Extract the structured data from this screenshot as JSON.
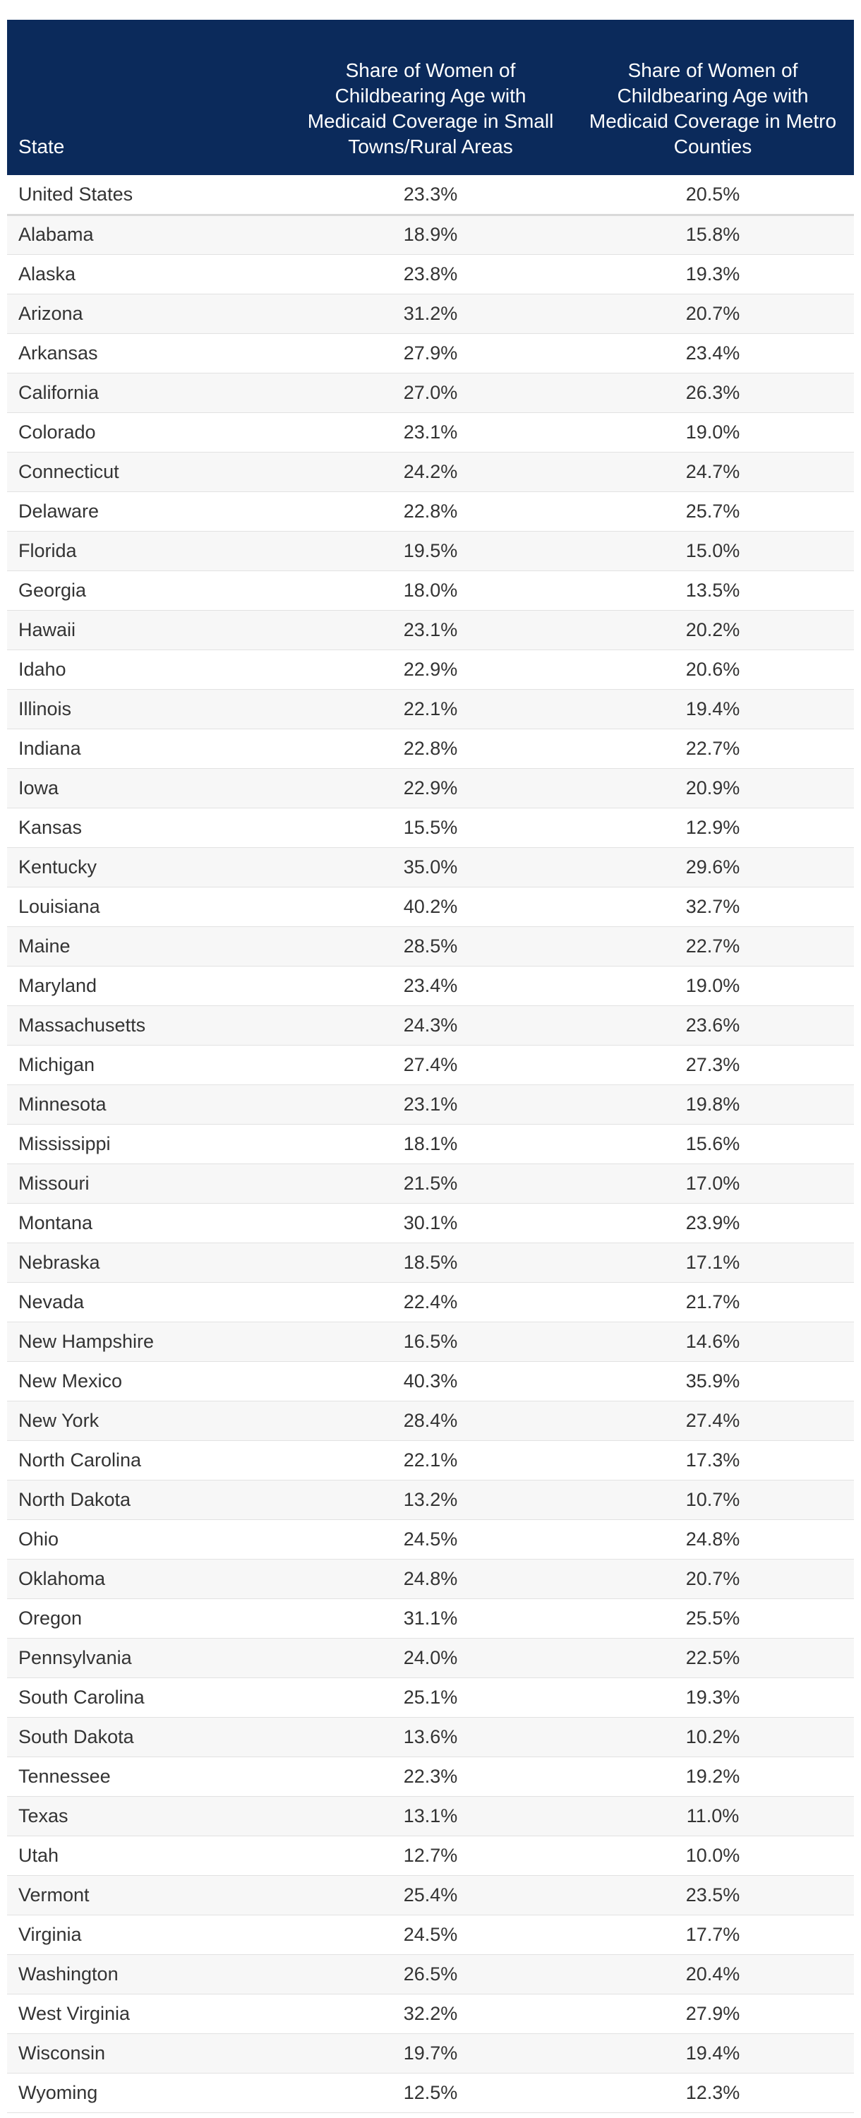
{
  "table": {
    "headers": {
      "state": "State",
      "rural": "Share of Women of Childbearing Age with Medicaid Coverage in Small Towns/Rural Areas",
      "metro": "Share of Women of Childbearing Age with Medicaid Coverage in Metro Counties"
    },
    "colors": {
      "header_bg": "#0b2a5b",
      "header_text": "#ffffff",
      "stripe": "#f7f7f7"
    },
    "rows": [
      {
        "state": "United States",
        "rural": "23.3%",
        "metro": "20.5%"
      },
      {
        "state": "Alabama",
        "rural": "18.9%",
        "metro": "15.8%"
      },
      {
        "state": "Alaska",
        "rural": "23.8%",
        "metro": "19.3%"
      },
      {
        "state": "Arizona",
        "rural": "31.2%",
        "metro": "20.7%"
      },
      {
        "state": "Arkansas",
        "rural": "27.9%",
        "metro": "23.4%"
      },
      {
        "state": "California",
        "rural": "27.0%",
        "metro": "26.3%"
      },
      {
        "state": "Colorado",
        "rural": "23.1%",
        "metro": "19.0%"
      },
      {
        "state": "Connecticut",
        "rural": "24.2%",
        "metro": "24.7%"
      },
      {
        "state": "Delaware",
        "rural": "22.8%",
        "metro": "25.7%"
      },
      {
        "state": "Florida",
        "rural": "19.5%",
        "metro": "15.0%"
      },
      {
        "state": "Georgia",
        "rural": "18.0%",
        "metro": "13.5%"
      },
      {
        "state": "Hawaii",
        "rural": "23.1%",
        "metro": "20.2%"
      },
      {
        "state": "Idaho",
        "rural": "22.9%",
        "metro": "20.6%"
      },
      {
        "state": "Illinois",
        "rural": "22.1%",
        "metro": "19.4%"
      },
      {
        "state": "Indiana",
        "rural": "22.8%",
        "metro": "22.7%"
      },
      {
        "state": "Iowa",
        "rural": "22.9%",
        "metro": "20.9%"
      },
      {
        "state": "Kansas",
        "rural": "15.5%",
        "metro": "12.9%"
      },
      {
        "state": "Kentucky",
        "rural": "35.0%",
        "metro": "29.6%"
      },
      {
        "state": "Louisiana",
        "rural": "40.2%",
        "metro": "32.7%"
      },
      {
        "state": "Maine",
        "rural": "28.5%",
        "metro": "22.7%"
      },
      {
        "state": "Maryland",
        "rural": "23.4%",
        "metro": "19.0%"
      },
      {
        "state": "Massachusetts",
        "rural": "24.3%",
        "metro": "23.6%"
      },
      {
        "state": "Michigan",
        "rural": "27.4%",
        "metro": "27.3%"
      },
      {
        "state": "Minnesota",
        "rural": "23.1%",
        "metro": "19.8%"
      },
      {
        "state": "Mississippi",
        "rural": "18.1%",
        "metro": "15.6%"
      },
      {
        "state": "Missouri",
        "rural": "21.5%",
        "metro": "17.0%"
      },
      {
        "state": "Montana",
        "rural": "30.1%",
        "metro": "23.9%"
      },
      {
        "state": "Nebraska",
        "rural": "18.5%",
        "metro": "17.1%"
      },
      {
        "state": "Nevada",
        "rural": "22.4%",
        "metro": "21.7%"
      },
      {
        "state": "New Hampshire",
        "rural": "16.5%",
        "metro": "14.6%"
      },
      {
        "state": "New Mexico",
        "rural": "40.3%",
        "metro": "35.9%"
      },
      {
        "state": "New York",
        "rural": "28.4%",
        "metro": "27.4%"
      },
      {
        "state": "North Carolina",
        "rural": "22.1%",
        "metro": "17.3%"
      },
      {
        "state": "North Dakota",
        "rural": "13.2%",
        "metro": "10.7%"
      },
      {
        "state": "Ohio",
        "rural": "24.5%",
        "metro": "24.8%"
      },
      {
        "state": "Oklahoma",
        "rural": "24.8%",
        "metro": "20.7%"
      },
      {
        "state": "Oregon",
        "rural": "31.1%",
        "metro": "25.5%"
      },
      {
        "state": "Pennsylvania",
        "rural": "24.0%",
        "metro": "22.5%"
      },
      {
        "state": "South Carolina",
        "rural": "25.1%",
        "metro": "19.3%"
      },
      {
        "state": "South Dakota",
        "rural": "13.6%",
        "metro": "10.2%"
      },
      {
        "state": "Tennessee",
        "rural": "22.3%",
        "metro": "19.2%"
      },
      {
        "state": "Texas",
        "rural": "13.1%",
        "metro": "11.0%"
      },
      {
        "state": "Utah",
        "rural": "12.7%",
        "metro": "10.0%"
      },
      {
        "state": "Vermont",
        "rural": "25.4%",
        "metro": "23.5%"
      },
      {
        "state": "Virginia",
        "rural": "24.5%",
        "metro": "17.7%"
      },
      {
        "state": "Washington",
        "rural": "26.5%",
        "metro": "20.4%"
      },
      {
        "state": "West Virginia",
        "rural": "32.2%",
        "metro": "27.9%"
      },
      {
        "state": "Wisconsin",
        "rural": "19.7%",
        "metro": "19.4%"
      },
      {
        "state": "Wyoming",
        "rural": "12.5%",
        "metro": "12.3%"
      }
    ]
  }
}
